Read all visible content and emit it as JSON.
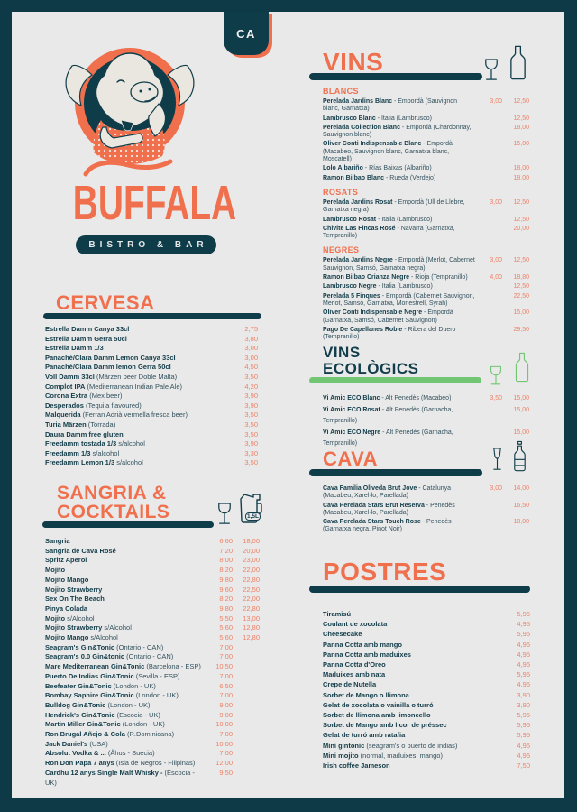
{
  "badge": {
    "label": "CA"
  },
  "logo": {
    "title": "BUFFALA",
    "subtitle": "BISTRO & BAR"
  },
  "colors": {
    "teal": "#0e3c49",
    "coral": "#f0704e",
    "price": "#ef8166",
    "green": "#72c572",
    "page_bg": "#e9e9e9",
    "cream": "#eae7e0"
  },
  "cervesa": {
    "title": "CERVESA",
    "items": [
      {
        "name": "Estrella Damm Canya 33cl",
        "prices": [
          "2,75"
        ]
      },
      {
        "name": "Estrella Damm Gerra 50cl",
        "prices": [
          "3,80"
        ]
      },
      {
        "name": "Estrella Damm 1/3",
        "prices": [
          "3,00"
        ]
      },
      {
        "name": "Panaché/Clara Damm Lemon Canya 33cl",
        "prices": [
          "3,00"
        ]
      },
      {
        "name": "Panaché/Clara Damm lemon Gerra 50cl",
        "prices": [
          "4,50"
        ]
      },
      {
        "name": "Voll Damm 33cl",
        "note": "(Märzen beer Doble Malta)",
        "prices": [
          "3,50"
        ]
      },
      {
        "name": "Complot IPA",
        "note": "(Mediterranean Indian Pale Ale)",
        "prices": [
          "4,20"
        ]
      },
      {
        "name": "Corona Extra",
        "note": "(Mex beer)",
        "prices": [
          "3,90"
        ]
      },
      {
        "name": "Desperados",
        "note": "(Tequila flavoured)",
        "prices": [
          "3,90"
        ]
      },
      {
        "name": "Malquerida",
        "note": "(Ferran Adrià vermella fresca beer)",
        "prices": [
          "3,50"
        ]
      },
      {
        "name": "Turia Märzen",
        "note": "(Torrada)",
        "prices": [
          "3,50"
        ]
      },
      {
        "name": "Daura Damm free gluten",
        "prices": [
          "3,50"
        ]
      },
      {
        "name": "Freedamm tostada 1/3",
        "note": "s/alcohol",
        "prices": [
          "3,90"
        ]
      },
      {
        "name": "Freedamm 1/3",
        "note": "s/alcohol",
        "prices": [
          "3,30"
        ]
      },
      {
        "name": "Freedamm Lemon 1/3",
        "note": "s/alcohol",
        "prices": [
          "3,50"
        ]
      }
    ]
  },
  "sangria": {
    "title_line1": "SANGRIA &",
    "title_line2": "COCKTAILS",
    "pitcher_label": "1,5L",
    "items": [
      {
        "name": "Sangria",
        "prices": [
          "6,60",
          "18,00"
        ]
      },
      {
        "name": "Sangria de Cava Rosé",
        "prices": [
          "7,20",
          "20,00"
        ]
      },
      {
        "name": "Spritz Aperol",
        "prices": [
          "8,00",
          "23,00"
        ]
      },
      {
        "name": "Mojito",
        "prices": [
          "8,20",
          "22,00"
        ]
      },
      {
        "name": "Mojito Mango",
        "prices": [
          "9,80",
          "22,80"
        ]
      },
      {
        "name": "Mojito Strawberry",
        "prices": [
          "9,60",
          "22,50"
        ]
      },
      {
        "name": "Sex On The Beach",
        "prices": [
          "8,20",
          "22,00"
        ]
      },
      {
        "name": "Pinya Colada",
        "prices": [
          "9,80",
          "22,80"
        ]
      },
      {
        "name": "Mojito",
        "note": "s/Alcohol",
        "prices": [
          "5,50",
          "13,00"
        ]
      },
      {
        "name": "Mojito Strawberry",
        "note": "s/Alcohol",
        "prices": [
          "5,60",
          "12,80"
        ]
      },
      {
        "name": "Mojito Mango",
        "note": "s/Alcohol",
        "prices": [
          "5,60",
          "12,80"
        ]
      },
      {
        "name": "Seagram's Gin&Tonic",
        "note": "(Ontario - CAN)",
        "prices": [
          "7,00",
          ""
        ]
      },
      {
        "name": "Seagram's 0.0 Gin&tonic",
        "note": "(Ontario - CAN)",
        "prices": [
          "7,00",
          ""
        ]
      },
      {
        "name": "Mare Mediterranean Gin&Tonic",
        "note": "(Barcelona - ESP)",
        "prices": [
          "10,50",
          ""
        ]
      },
      {
        "name": "Puerto De Indias Gin&Tonic",
        "note": "(Sevilla - ESP)",
        "prices": [
          "7,00",
          ""
        ]
      },
      {
        "name": "Beefeater Gin&Tonic",
        "note": "(London - UK)",
        "prices": [
          "6,50",
          ""
        ]
      },
      {
        "name": "Bombay Saphire Gin&Tonic",
        "note": "(London - UK)",
        "prices": [
          "7,00",
          ""
        ]
      },
      {
        "name": "Bulldog Gin&Tonic",
        "note": "(London - UK)",
        "prices": [
          "9,00",
          ""
        ]
      },
      {
        "name": "Hendrick's Gin&Tonic",
        "note": "(Escocia - UK)",
        "prices": [
          "9,00",
          ""
        ]
      },
      {
        "name": "Martin Miller Gin&Tonic",
        "note": "(London - UK)",
        "prices": [
          "10,00",
          ""
        ]
      },
      {
        "name": "Ron Brugal Añejo & Cola",
        "note": "(R.Dominicana)",
        "prices": [
          "7,00",
          ""
        ]
      },
      {
        "name": "Jack Daniel's",
        "note": "(USA)",
        "prices": [
          "10,00",
          ""
        ]
      },
      {
        "name": "Absolut Vodka & ...",
        "note": "(Åhus - Suecia)",
        "prices": [
          "7,00",
          ""
        ]
      },
      {
        "name": "Ron Don Papa 7 anys",
        "note": "(Isla de Negros - Filipinas)",
        "prices": [
          "12,00",
          ""
        ]
      },
      {
        "name": "Cardhu 12 anys Single Malt Whisky -",
        "note": "(Escocia - UK)",
        "prices": [
          "9,50",
          ""
        ]
      }
    ]
  },
  "vins": {
    "title": "VINS",
    "groups": [
      {
        "label": "BLANCS",
        "items": [
          {
            "name": "Perelada Jardins Blanc",
            "note": "- Empordà (Sauvignon blanc, Garnatxa)",
            "prices": [
              "3,00",
              "12,50"
            ]
          },
          {
            "name": "Lambrusco Blanc",
            "note": "- Italia (Lambrusco)",
            "prices": [
              "",
              "12,50"
            ]
          },
          {
            "name": "Perelada Collection Blanc",
            "note": "- Empordà (Chardonnay, Sauvignon blanc)",
            "prices": [
              "",
              "18,00"
            ]
          },
          {
            "name": "Oliver Conti Indispensable Blanc",
            "note": "- Empordà (Macabeo, Sauvignon blanc, Garnatxa blanc, Moscatell)",
            "prices": [
              "",
              "15,00"
            ]
          },
          {
            "name": "Lolo Albariño",
            "note": "- Rías Baixas (Albariño)",
            "prices": [
              "",
              "18,00"
            ]
          },
          {
            "name": "Ramon Bilbao Blanc",
            "note": "- Rueda (Verdejo)",
            "prices": [
              "",
              "18,00"
            ]
          }
        ]
      },
      {
        "label": "ROSATS",
        "items": [
          {
            "name": "Perelada Jardins Rosat",
            "note": "- Empordà (Ull de Llebre, Garnatxa negra)",
            "prices": [
              "3,00",
              "12,50"
            ]
          },
          {
            "name": "Lambrusco Rosat",
            "note": "- Italia (Lambrusco)",
            "prices": [
              "",
              "12,50"
            ]
          },
          {
            "name": "Chivite Las Fincas Rosé",
            "note": "- Navarra (Garnatxa, Tempranillo)",
            "prices": [
              "",
              "20,00"
            ]
          }
        ]
      },
      {
        "label": "NEGRES",
        "items": [
          {
            "name": "Perelada Jardins Negre",
            "note": "- Empordà (Merlot, Cabernet Sauvignon, Samsó, Garnatxa negra)",
            "prices": [
              "3,00",
              "12,50"
            ]
          },
          {
            "name": "Ramon Bilbao Crianza Negre",
            "note": "- Rioja (Tempranillo)",
            "prices": [
              "4,00",
              "18,80"
            ]
          },
          {
            "name": "Lambrusco Negre",
            "note": "- Italia (Lambrusco)",
            "prices": [
              "",
              "12,50"
            ]
          },
          {
            "name": "Perelada 5 Finques",
            "note": "- Empordà (Cabernet Sauvignon, Merlot, Samsó, Garnatxa, Monestrell, Syrah)",
            "prices": [
              "",
              "22,50"
            ]
          },
          {
            "name": "Oliver Conti Indispensable Negre",
            "note": "- Empordà (Garnatxa, Samsó, Cabernet Sauvignon)",
            "prices": [
              "",
              "15,00"
            ]
          },
          {
            "name": "Pago De Capellanes Roble",
            "note": "- Ribera del Duero (Tempranillo)",
            "prices": [
              "",
              "29,50"
            ]
          }
        ]
      }
    ]
  },
  "eco": {
    "title_line1": "VINS",
    "title_line2": "ECOLÒGICS",
    "items": [
      {
        "name": "Vi Amic ECO Blanc",
        "note": "- Alt Penedès (Macabeo)",
        "prices": [
          "3,50",
          "15,00"
        ]
      },
      {
        "name": "Vi Amic ECO Rosat",
        "note": "- Alt Penedès (Garnacha, Tempranillo)",
        "prices": [
          "",
          "15,00"
        ]
      },
      {
        "name": "Vi Amic ECO Negre",
        "note": "- Alt Penedès (Garnacha, Tempranillo)",
        "prices": [
          "",
          "15,00"
        ]
      }
    ]
  },
  "cava": {
    "title": "CAVA",
    "items": [
      {
        "name": "Cava Familia Oliveda Brut Jove",
        "note": "- Catalunya (Macabeu, Xarel·lo, Parellada)",
        "prices": [
          "3,00",
          "14,00"
        ]
      },
      {
        "name": "Cava Perelada Stars Brut Reserva",
        "note": "- Penedès (Macabeu, Xarel·lo, Parellada)",
        "prices": [
          "",
          "16,50"
        ]
      },
      {
        "name": "Cava Perelada Stars Touch Rose",
        "note": "- Penedès (Garnatxa negra, Pinot Noir)",
        "prices": [
          "",
          "18,00"
        ]
      }
    ]
  },
  "postres": {
    "title": "POSTRES",
    "items": [
      {
        "name": "Tiramisú",
        "prices": [
          "5,95"
        ]
      },
      {
        "name": "Coulant de xocolata",
        "prices": [
          "4,95"
        ]
      },
      {
        "name": "Cheesecake",
        "prices": [
          "5,95"
        ]
      },
      {
        "name": "Panna Cotta amb mango",
        "prices": [
          "4,95"
        ]
      },
      {
        "name": "Panna Cotta amb maduixes",
        "prices": [
          "4,95"
        ]
      },
      {
        "name": "Panna Cotta d'Oreo",
        "prices": [
          "4,95"
        ]
      },
      {
        "name": "Maduixes amb nata",
        "prices": [
          "5,95"
        ]
      },
      {
        "name": "Crepe de Nutella",
        "prices": [
          "4,95"
        ]
      },
      {
        "name": "Sorbet de Mango o llimona",
        "prices": [
          "3,90"
        ]
      },
      {
        "name": "Gelat de xocolata o vainilla o turró",
        "prices": [
          "3,90"
        ]
      },
      {
        "name": "Sorbet de llimona amb limoncello",
        "prices": [
          "5,95"
        ]
      },
      {
        "name": "Sorbet de Mango amb licor de préssec",
        "prices": [
          "5,95"
        ]
      },
      {
        "name": "Gelat de turró amb ratafia",
        "prices": [
          "5,95"
        ]
      },
      {
        "name": "Mini gintonic",
        "note": "(seagram's o puerto de indias)",
        "prices": [
          "4,95"
        ]
      },
      {
        "name": "Mini mojito",
        "note": "(normal, maduixes, mango)",
        "prices": [
          "4,95"
        ]
      },
      {
        "name": "Irish coffee Jameson",
        "prices": [
          "7,50"
        ]
      }
    ]
  }
}
